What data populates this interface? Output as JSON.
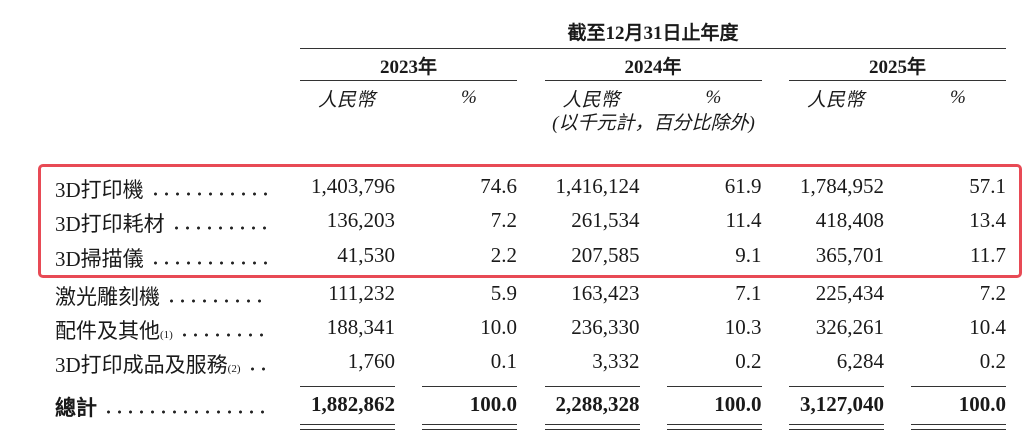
{
  "header": {
    "period": "截至12月31日止年度",
    "years": [
      {
        "year": "2023年",
        "currency": "人民幣",
        "percent": "%"
      },
      {
        "year": "2024年",
        "currency": "人民幣",
        "percent": "%"
      },
      {
        "year": "2025年",
        "currency": "人民幣",
        "percent": "%"
      }
    ],
    "note": "(以千元計，百分比除外)"
  },
  "table": {
    "rows": [
      {
        "label": "3D打印機",
        "values": [
          "1,403,796",
          "74.6",
          "1,416,124",
          "61.9",
          "1,784,952",
          "57.1"
        ]
      },
      {
        "label": "3D打印耗材",
        "values": [
          "136,203",
          "7.2",
          "261,534",
          "11.4",
          "418,408",
          "13.4"
        ]
      },
      {
        "label": "3D掃描儀",
        "values": [
          "41,530",
          "2.2",
          "207,585",
          "9.1",
          "365,701",
          "11.7"
        ]
      },
      {
        "label": "激光雕刻機",
        "values": [
          "111,232",
          "5.9",
          "163,423",
          "7.1",
          "225,434",
          "7.2"
        ]
      },
      {
        "label": "配件及其他",
        "note": "(1)",
        "values": [
          "188,341",
          "10.0",
          "236,330",
          "10.3",
          "326,261",
          "10.4"
        ]
      },
      {
        "label": "3D打印成品及服務",
        "note": "(2)",
        "values": [
          "1,760",
          "0.1",
          "3,332",
          "0.2",
          "6,284",
          "0.2"
        ]
      }
    ],
    "total": {
      "label": "總計",
      "values": [
        "1,882,862",
        "100.0",
        "2,288,328",
        "100.0",
        "3,127,040",
        "100.0"
      ]
    }
  }
}
